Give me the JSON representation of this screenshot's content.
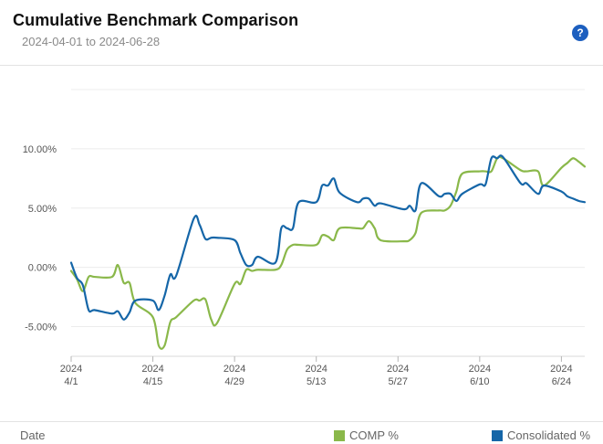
{
  "header": {
    "title": "Cumulative Benchmark Comparison",
    "subtitle": "2024-04-01 to 2024-06-28",
    "help_label": "?"
  },
  "footer": {
    "x_name": "Date"
  },
  "chart_data": {
    "type": "line",
    "title": "Cumulative Benchmark Comparison",
    "subtitle": "2024-04-01 to 2024-06-28",
    "xlabel": "Date",
    "ylabel": "",
    "ylim": [
      -7.5,
      15
    ],
    "grid": true,
    "legend_position": "bottom",
    "y_ticks": [
      {
        "value": -5,
        "label": "-5.00%"
      },
      {
        "value": 0,
        "label": "0.00%"
      },
      {
        "value": 5,
        "label": "5.00%"
      },
      {
        "value": 10,
        "label": "10.00%"
      }
    ],
    "x_ticks": [
      {
        "date": "2024-04-01",
        "line1": "2024",
        "line2": "4/1"
      },
      {
        "date": "2024-04-15",
        "line1": "2024",
        "line2": "4/15"
      },
      {
        "date": "2024-04-29",
        "line1": "2024",
        "line2": "4/29"
      },
      {
        "date": "2024-05-13",
        "line1": "2024",
        "line2": "5/13"
      },
      {
        "date": "2024-05-27",
        "line1": "2024",
        "line2": "5/27"
      },
      {
        "date": "2024-06-10",
        "line1": "2024",
        "line2": "6/10"
      },
      {
        "date": "2024-06-24",
        "line1": "2024",
        "line2": "6/24"
      }
    ],
    "x": [
      "2024-04-01",
      "2024-04-02",
      "2024-04-03",
      "2024-04-04",
      "2024-04-05",
      "2024-04-08",
      "2024-04-09",
      "2024-04-10",
      "2024-04-11",
      "2024-04-12",
      "2024-04-15",
      "2024-04-16",
      "2024-04-17",
      "2024-04-18",
      "2024-04-19",
      "2024-04-22",
      "2024-04-23",
      "2024-04-24",
      "2024-04-25",
      "2024-04-26",
      "2024-04-29",
      "2024-04-30",
      "2024-05-01",
      "2024-05-02",
      "2024-05-03",
      "2024-05-06",
      "2024-05-07",
      "2024-05-08",
      "2024-05-09",
      "2024-05-10",
      "2024-05-13",
      "2024-05-14",
      "2024-05-15",
      "2024-05-16",
      "2024-05-17",
      "2024-05-20",
      "2024-05-21",
      "2024-05-22",
      "2024-05-23",
      "2024-05-24",
      "2024-05-28",
      "2024-05-29",
      "2024-05-30",
      "2024-05-31",
      "2024-06-03",
      "2024-06-04",
      "2024-06-05",
      "2024-06-06",
      "2024-06-07",
      "2024-06-10",
      "2024-06-11",
      "2024-06-12",
      "2024-06-13",
      "2024-06-14",
      "2024-06-17",
      "2024-06-18",
      "2024-06-20",
      "2024-06-21",
      "2024-06-24",
      "2024-06-25",
      "2024-06-26",
      "2024-06-27",
      "2024-06-28"
    ],
    "series": [
      {
        "name": "COMP %",
        "color": "#8ab84a",
        "values": [
          -0.3,
          -1.0,
          -2.0,
          -0.8,
          -0.8,
          -0.8,
          0.2,
          -1.3,
          -1.3,
          -3.0,
          -4.2,
          -6.6,
          -6.6,
          -4.6,
          -4.2,
          -2.8,
          -2.8,
          -2.7,
          -4.4,
          -4.7,
          -1.4,
          -1.4,
          -0.2,
          -0.3,
          -0.2,
          -0.2,
          0.2,
          1.5,
          1.9,
          1.9,
          1.9,
          2.7,
          2.6,
          2.3,
          3.3,
          3.3,
          3.3,
          3.9,
          3.3,
          2.3,
          2.2,
          2.3,
          2.9,
          4.6,
          4.8,
          4.8,
          5.2,
          6.4,
          7.9,
          8.1,
          8.1,
          8.1,
          9.2,
          9.2,
          8.2,
          8.1,
          8.1,
          6.9,
          8.4,
          8.8,
          9.2,
          8.9,
          8.5
        ]
      },
      {
        "name": "Consolidated %",
        "color": "#1566a8",
        "values": [
          0.4,
          -0.9,
          -1.5,
          -3.6,
          -3.6,
          -3.9,
          -3.7,
          -4.4,
          -3.8,
          -2.8,
          -2.8,
          -3.6,
          -2.4,
          -0.6,
          -0.7,
          4.1,
          3.6,
          2.4,
          2.5,
          2.5,
          2.3,
          1.2,
          0.2,
          0.2,
          0.9,
          0.4,
          3.3,
          3.3,
          3.3,
          5.5,
          5.5,
          6.9,
          6.9,
          7.5,
          6.3,
          5.5,
          5.8,
          5.8,
          5.2,
          5.4,
          4.9,
          5.2,
          4.8,
          7.1,
          6.0,
          6.2,
          6.2,
          5.6,
          6.2,
          7.0,
          7.0,
          9.2,
          9.2,
          9.3,
          7.1,
          7.1,
          6.2,
          6.9,
          6.4,
          6.0,
          5.8,
          5.6,
          5.5
        ]
      }
    ]
  }
}
